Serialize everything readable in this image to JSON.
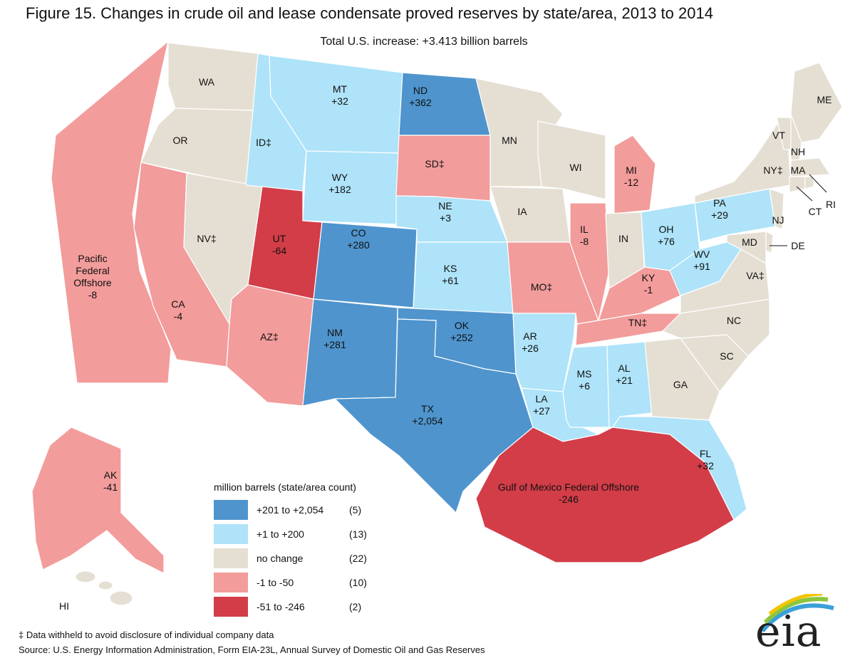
{
  "title": "Figure 15. Changes in crude oil and lease condensate proved reserves by state/area, 2013 to 2014",
  "subtitle": "Total U.S. increase: +3.413 billion barrels",
  "colors": {
    "dark_blue": "#4f94cd",
    "light_blue": "#aee3f9",
    "beige": "#e5dfd3",
    "pink": "#f29c9b",
    "red": "#d23d48"
  },
  "regions": [
    {
      "label": "WA",
      "value": ""
    },
    {
      "label": "OR",
      "value": ""
    },
    {
      "label": "Pacific Federal Offshore",
      "value": "-8"
    },
    {
      "label": "CA",
      "value": "-4"
    },
    {
      "label": "NV‡",
      "value": ""
    },
    {
      "label": "ID‡",
      "value": ""
    },
    {
      "label": "MT",
      "value": "+32"
    },
    {
      "label": "WY",
      "value": "+182"
    },
    {
      "label": "UT",
      "value": "-64"
    },
    {
      "label": "AZ‡",
      "value": ""
    },
    {
      "label": "CO",
      "value": "+280"
    },
    {
      "label": "NM",
      "value": "+281"
    },
    {
      "label": "ND",
      "value": "+362"
    },
    {
      "label": "SD‡",
      "value": ""
    },
    {
      "label": "NE",
      "value": "+3"
    },
    {
      "label": "KS",
      "value": "+61"
    },
    {
      "label": "OK",
      "value": "+252"
    },
    {
      "label": "TX",
      "value": "+2,054"
    },
    {
      "label": "MN",
      "value": ""
    },
    {
      "label": "IA",
      "value": ""
    },
    {
      "label": "MO‡",
      "value": ""
    },
    {
      "label": "AR",
      "value": "+26"
    },
    {
      "label": "LA",
      "value": "+27"
    },
    {
      "label": "WI",
      "value": ""
    },
    {
      "label": "IL",
      "value": "-8"
    },
    {
      "label": "MI",
      "value": "-12"
    },
    {
      "label": "IN",
      "value": ""
    },
    {
      "label": "OH",
      "value": "+76"
    },
    {
      "label": "KY",
      "value": "-1"
    },
    {
      "label": "TN‡",
      "value": ""
    },
    {
      "label": "MS",
      "value": "+6"
    },
    {
      "label": "AL",
      "value": "+21"
    },
    {
      "label": "GA",
      "value": ""
    },
    {
      "label": "FL",
      "value": "+32"
    },
    {
      "label": "SC",
      "value": ""
    },
    {
      "label": "NC",
      "value": ""
    },
    {
      "label": "VA‡",
      "value": ""
    },
    {
      "label": "WV",
      "value": "+91"
    },
    {
      "label": "PA",
      "value": "+29"
    },
    {
      "label": "NY‡",
      "value": ""
    },
    {
      "label": "VT",
      "value": ""
    },
    {
      "label": "NH",
      "value": ""
    },
    {
      "label": "ME",
      "value": ""
    },
    {
      "label": "MA",
      "value": ""
    },
    {
      "label": "RI",
      "value": ""
    },
    {
      "label": "CT",
      "value": ""
    },
    {
      "label": "NJ",
      "value": ""
    },
    {
      "label": "DE",
      "value": ""
    },
    {
      "label": "MD",
      "value": ""
    },
    {
      "label": "AK",
      "value": "-41"
    },
    {
      "label": "HI",
      "value": ""
    },
    {
      "label": "Gulf of Mexico Federal Offshore",
      "value": "-246"
    }
  ],
  "legend": {
    "title": "million barrels (state/area count)",
    "items": [
      {
        "label": "+201 to +2,054",
        "count": "(5)",
        "color": "#4f94cd"
      },
      {
        "label": "+1 to +200",
        "count": "(13)",
        "color": "#aee3f9"
      },
      {
        "label": "no change",
        "count": "(22)",
        "color": "#e5dfd3"
      },
      {
        "label": "-1 to -50",
        "count": "(10)",
        "color": "#f29c9b"
      },
      {
        "label": "-51 to -246",
        "count": "(2)",
        "color": "#d23d48"
      }
    ]
  },
  "footnote": "‡ Data withheld to avoid disclosure of individual company data",
  "source": "Source:  U.S. Energy Information Administration, Form EIA-23L, Annual Survey of Domestic Oil and Gas Reserves",
  "logo": "eia"
}
